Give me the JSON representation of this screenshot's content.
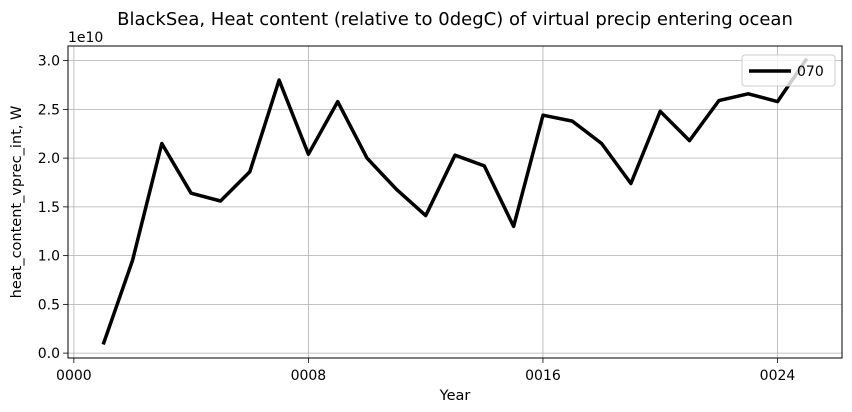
{
  "chart_data": {
    "type": "line",
    "title": "BlackSea, Heat content (relative to 0degC) of virtual precip entering ocean",
    "xlabel": "Year",
    "ylabel": "heat_content_vprec_int, W",
    "y_offset_label": "1e10",
    "y_scale_factor": 10000000000.0,
    "xlim": [
      -0.2,
      26.2
    ],
    "ylim": [
      -0.05,
      3.15
    ],
    "x_ticks": [
      0,
      8,
      16,
      24
    ],
    "x_tick_labels": [
      "0000",
      "0008",
      "0016",
      "0024"
    ],
    "y_ticks": [
      0,
      0.5,
      1,
      1.5,
      2,
      2.5,
      3
    ],
    "y_tick_labels": [
      "0.0",
      "0.5",
      "1.0",
      "1.5",
      "2.0",
      "2.5",
      "3.0"
    ],
    "grid": true,
    "legend_position": "top-right",
    "series": [
      {
        "name": "070",
        "color": "#000000",
        "x": [
          1,
          2,
          3,
          4,
          5,
          6,
          7,
          8,
          9,
          10,
          11,
          12,
          13,
          14,
          15,
          16,
          17,
          18,
          19,
          20,
          21,
          22,
          23,
          24,
          25
        ],
        "values": [
          0.09,
          0.95,
          2.15,
          1.64,
          1.56,
          1.86,
          2.8,
          2.04,
          2.58,
          2.0,
          1.68,
          1.41,
          2.03,
          1.92,
          1.3,
          2.44,
          2.38,
          2.15,
          1.74,
          2.48,
          2.18,
          2.59,
          2.66,
          2.58,
          3.02
        ]
      }
    ]
  }
}
